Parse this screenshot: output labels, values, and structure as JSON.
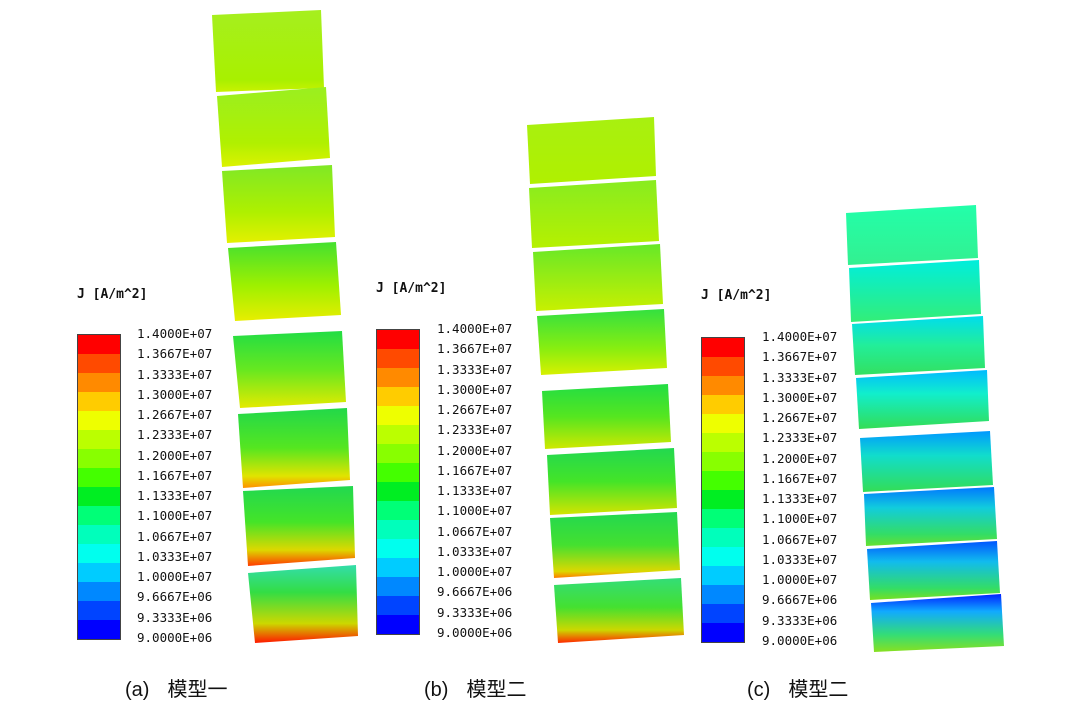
{
  "legend": {
    "title": "J [A/m^2]",
    "ticks": [
      "1.4000E+07",
      "1.3667E+07",
      "1.3333E+07",
      "1.3000E+07",
      "1.2667E+07",
      "1.2333E+07",
      "1.2000E+07",
      "1.1667E+07",
      "1.1333E+07",
      "1.1000E+07",
      "1.0667E+07",
      "1.0333E+07",
      "1.0000E+07",
      "9.6667E+06",
      "9.3333E+06",
      "9.0000E+06"
    ],
    "colors": [
      "#ff0000",
      "#ff4a00",
      "#ff8a00",
      "#ffcc00",
      "#eeff00",
      "#bbff00",
      "#88ff00",
      "#44ff00",
      "#00ee22",
      "#00ff77",
      "#00ffbb",
      "#00ffee",
      "#00ccff",
      "#0088ff",
      "#0044ff",
      "#0000ff"
    ]
  },
  "panels": [
    {
      "id": "a",
      "label": "(a)",
      "name": "模型一"
    },
    {
      "id": "b",
      "label": "(b)",
      "name": "模型二"
    },
    {
      "id": "c",
      "label": "(c)",
      "name": "模型二"
    }
  ]
}
